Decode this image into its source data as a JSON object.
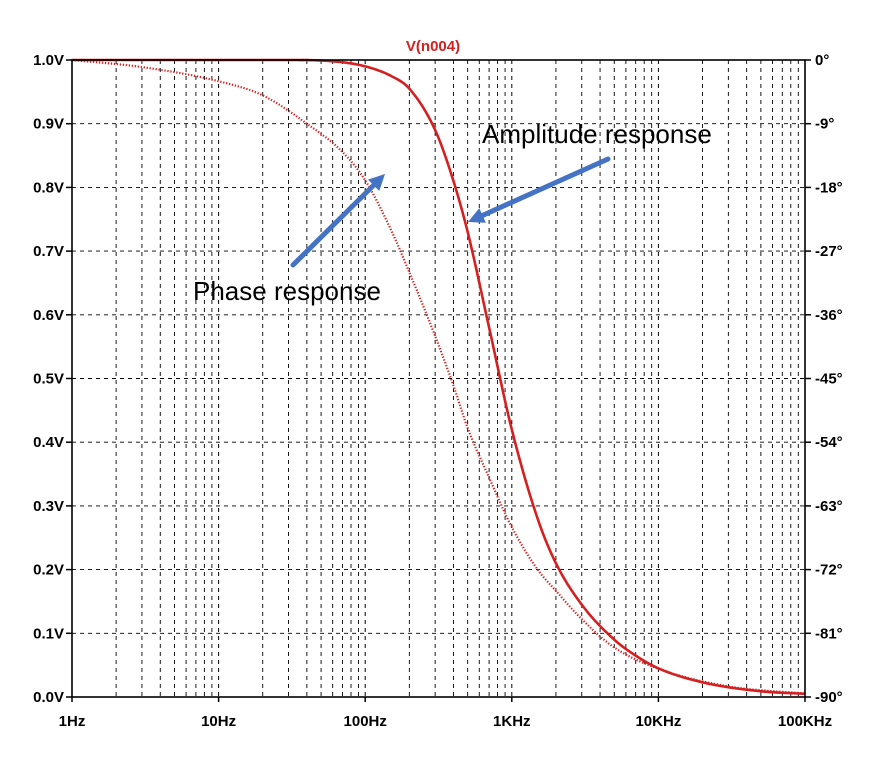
{
  "chart_data": {
    "type": "line",
    "title": "V(n004)",
    "x_scale": "log",
    "xlim": [
      1,
      100000
    ],
    "x_ticks": [
      1,
      10,
      100,
      1000,
      10000,
      100000
    ],
    "x_tick_labels": [
      "1Hz",
      "10Hz",
      "100Hz",
      "1KHz",
      "10KHz",
      "100KHz"
    ],
    "ylim": [
      0,
      1.0
    ],
    "y_ticks": [
      0,
      0.1,
      0.2,
      0.3,
      0.4,
      0.5,
      0.6,
      0.7,
      0.8,
      0.9,
      1.0
    ],
    "y_tick_labels": [
      "0.0V",
      "0.1V",
      "0.2V",
      "0.3V",
      "0.4V",
      "0.5V",
      "0.6V",
      "0.7V",
      "0.8V",
      "0.9V",
      "1.0V"
    ],
    "y2lim": [
      -90,
      0
    ],
    "y2_ticks": [
      0,
      -9,
      -18,
      -27,
      -36,
      -45,
      -54,
      -63,
      -72,
      -81,
      -90
    ],
    "y2_tick_labels": [
      "0°",
      "-9°",
      "-18°",
      "-27°",
      "-36°",
      "-45°",
      "-54°",
      "-63°",
      "-72°",
      "-81°",
      "-90°"
    ],
    "grid": true,
    "series": [
      {
        "axis": "left",
        "style": "solid",
        "color": "#d42020",
        "x": [
          1,
          10,
          30,
          60,
          100,
          150,
          200,
          300,
          400,
          500,
          700,
          1000,
          1500,
          2000,
          3000,
          5000,
          7000,
          10000,
          20000,
          50000,
          100000
        ],
        "y": [
          1.0,
          1.0,
          1.0,
          0.998,
          0.99,
          0.975,
          0.955,
          0.89,
          0.81,
          0.73,
          0.58,
          0.42,
          0.28,
          0.21,
          0.145,
          0.09,
          0.065,
          0.045,
          0.023,
          0.009,
          0.005
        ]
      },
      {
        "axis": "right",
        "style": "dotted",
        "color": "#d42020",
        "x": [
          1,
          3,
          10,
          20,
          40,
          70,
          100,
          150,
          200,
          300,
          400,
          500,
          700,
          1000,
          1500,
          2000,
          3000,
          5000,
          10000,
          30000,
          100000
        ],
        "y": [
          0,
          -1,
          -3,
          -5,
          -9,
          -13,
          -17,
          -24,
          -30,
          -39,
          -46,
          -52,
          -59,
          -66,
          -72,
          -75,
          -79,
          -83,
          -86,
          -88.5,
          -89.5
        ]
      }
    ],
    "annotations": [
      {
        "text": "Amplitude response"
      },
      {
        "text": "Phase response"
      }
    ],
    "annotation_color": "#4472c4"
  }
}
